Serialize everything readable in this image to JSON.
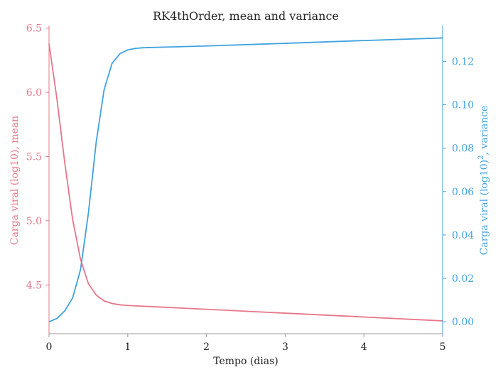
{
  "chart_data": {
    "type": "line",
    "title": "RK4thOrder, mean and variance",
    "xlabel": "Tempo (dias)",
    "xlim": [
      0,
      5
    ],
    "x_ticks": [
      "0",
      "1",
      "2",
      "3",
      "4",
      "5"
    ],
    "grid": false,
    "legend": "none",
    "colors": {
      "mean": "#e8768a",
      "variance": "#3fa2df",
      "axis": "#999999",
      "text": "#222222"
    },
    "left_axis": {
      "label_main": "Carga viral (log10), mean",
      "ylim": [
        4.12,
        6.52
      ],
      "ticks": [
        "4.5",
        "5.0",
        "5.5",
        "6.0",
        "6.5"
      ]
    },
    "right_axis": {
      "label_pre": "Carga viral (log10)",
      "label_sup": "2",
      "label_post": ", variance",
      "ylim": [
        -0.0055,
        0.1365
      ],
      "ticks": [
        "0.00",
        "0.02",
        "0.04",
        "0.06",
        "0.08",
        "0.10",
        "0.12"
      ]
    },
    "series": [
      {
        "key": "mean",
        "axis": "left",
        "x": [
          0,
          0.1,
          0.2,
          0.3,
          0.4,
          0.5,
          0.6,
          0.7,
          0.8,
          0.9,
          1.0,
          1.5,
          2,
          3,
          4,
          5
        ],
        "y": [
          6.38,
          5.95,
          5.45,
          5.01,
          4.7,
          4.51,
          4.42,
          4.375,
          4.355,
          4.345,
          4.34,
          4.325,
          4.31,
          4.28,
          4.25,
          4.22
        ]
      },
      {
        "key": "variance",
        "axis": "right",
        "x": [
          0,
          0.1,
          0.2,
          0.3,
          0.4,
          0.5,
          0.6,
          0.7,
          0.8,
          0.9,
          1.0,
          1.1,
          1.2,
          1.5,
          2,
          3,
          4,
          5
        ],
        "y": [
          0.0,
          0.0015,
          0.005,
          0.011,
          0.024,
          0.05,
          0.083,
          0.107,
          0.119,
          0.1235,
          0.1253,
          0.126,
          0.1263,
          0.1266,
          0.1271,
          0.1283,
          0.1296,
          0.1308
        ]
      }
    ]
  }
}
